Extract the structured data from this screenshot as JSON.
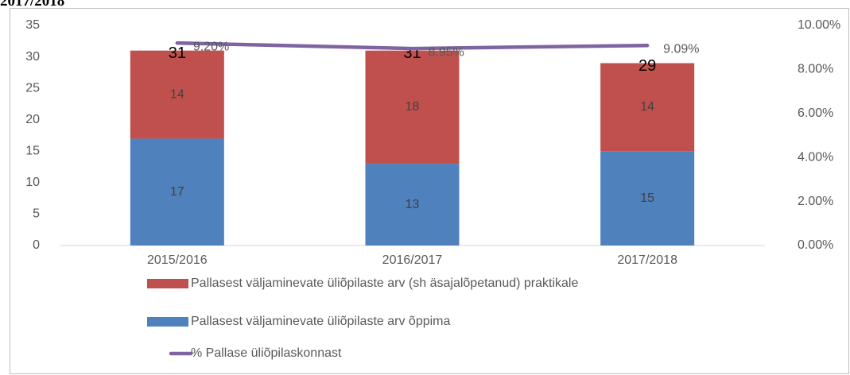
{
  "chart_data": {
    "type": "bar",
    "title": "2017/2018",
    "categories": [
      "2015/2016",
      "2016/2017",
      "2017/2018"
    ],
    "stacked": true,
    "series": [
      {
        "name": "Pallasest väljaminevate üliõpilaste arv õppima",
        "color": "#4f81bd",
        "values": [
          17,
          13,
          15
        ]
      },
      {
        "name": "Pallasest väljaminevate üliõpilaste arv (sh äsajalõpetanud) praktikale",
        "color": "#c0504d",
        "values": [
          14,
          18,
          14
        ]
      },
      {
        "name": "% Pallase üliõpilaskonnast",
        "type": "line",
        "axis": "y2",
        "color": "#8064a2",
        "values": [
          9.2,
          8.95,
          9.09
        ],
        "value_labels": [
          "9.20%",
          "8.95%",
          "9.09%"
        ]
      }
    ],
    "totals": [
      31,
      31,
      29
    ],
    "ylim": [
      0,
      35
    ],
    "yticks": [
      0,
      5,
      10,
      15,
      20,
      25,
      30,
      35
    ],
    "y2lim": [
      0,
      10
    ],
    "y2ticks": [
      {
        "value": 0,
        "label": "0.00%"
      },
      {
        "value": 2,
        "label": "2.00%"
      },
      {
        "value": 4,
        "label": "4.00%"
      },
      {
        "value": 6,
        "label": "6.00%"
      },
      {
        "value": 8,
        "label": "8.00%"
      },
      {
        "value": 10,
        "label": "10.00%"
      }
    ],
    "grid": false,
    "legend": "bottom"
  }
}
